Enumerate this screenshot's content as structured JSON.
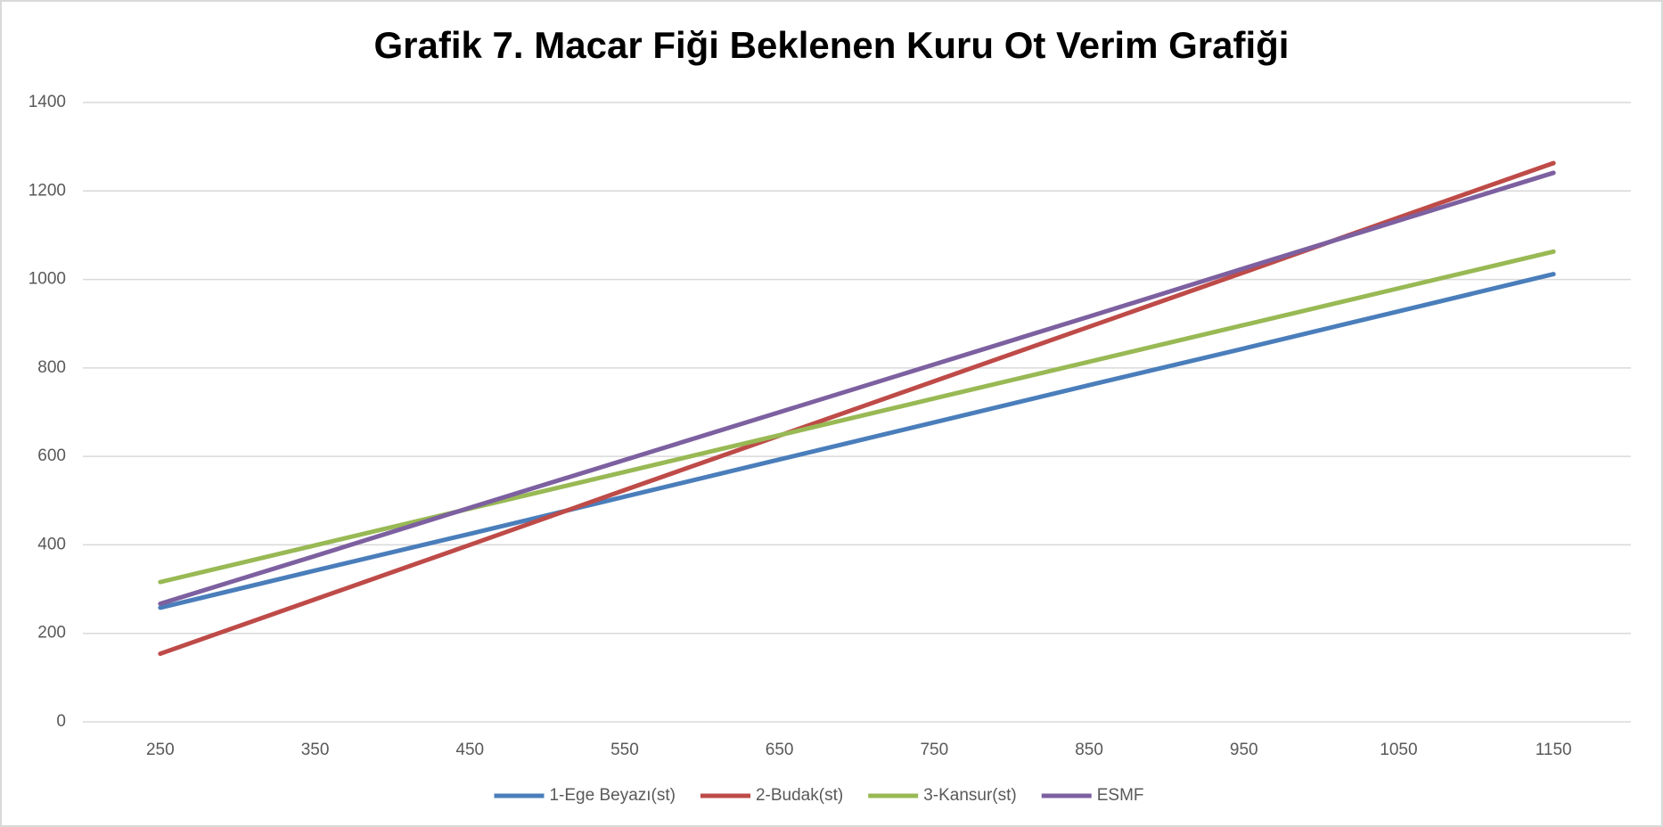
{
  "chart_data": {
    "type": "line",
    "title": "Grafik 7. Macar Fiği Beklenen Kuru Ot Verim Grafiği",
    "categories": [
      "250",
      "350",
      "450",
      "550",
      "650",
      "750",
      "850",
      "950",
      "1050",
      "1150"
    ],
    "series": [
      {
        "name": "1-Ege Beyazı(st)",
        "color": "#4a7ebb",
        "values": [
          258,
          342,
          425,
          509,
          593,
          677,
          761,
          844,
          928,
          1012
        ]
      },
      {
        "name": "2-Budak(st)",
        "color": "#be4b48",
        "values": [
          154,
          277,
          400,
          524,
          647,
          770,
          893,
          1016,
          1140,
          1263
        ]
      },
      {
        "name": "3-Kansur(st)",
        "color": "#98b954",
        "values": [
          316,
          399,
          482,
          565,
          648,
          731,
          814,
          897,
          980,
          1063
        ]
      },
      {
        "name": "ESMF",
        "color": "#7d60a0",
        "values": [
          267,
          375,
          484,
          592,
          700,
          808,
          916,
          1025,
          1133,
          1241
        ]
      }
    ],
    "ylim": [
      0,
      1400
    ],
    "yticks": [
      0,
      200,
      400,
      600,
      800,
      1000,
      1200,
      1400
    ],
    "grid": true,
    "legend": "bottom"
  }
}
